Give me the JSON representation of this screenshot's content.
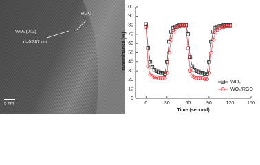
{
  "image": {
    "labels": {
      "region": "RGO",
      "plane": "WO₃ (002)",
      "spacing": "d=0.387 nm",
      "scale": "5 nm"
    }
  },
  "chart_data": {
    "type": "line",
    "x_label": "Time (second)",
    "y_label": "Transmittance (%)",
    "x": [
      0,
      3,
      6,
      9,
      12,
      15,
      18,
      21,
      24,
      27,
      30,
      33,
      36,
      39,
      42,
      45,
      48,
      51,
      54,
      57,
      60,
      63,
      66,
      69,
      72,
      75,
      78,
      81,
      84,
      87,
      90,
      93,
      96,
      99,
      102,
      105,
      108,
      111,
      114,
      117,
      120
    ],
    "series": [
      {
        "name": "WO₃",
        "color": "#222222",
        "marker": "square",
        "values": [
          81,
          55,
          40,
          34,
          31,
          30,
          29,
          28,
          28,
          27,
          40,
          62,
          73,
          77,
          78,
          79,
          80,
          80,
          80,
          80,
          70,
          45,
          35,
          31,
          30,
          29,
          28,
          28,
          27,
          27,
          40,
          62,
          73,
          77,
          78,
          79,
          79,
          80,
          80,
          80,
          80
        ]
      },
      {
        "name": "WO₃/RGO",
        "color": "#e8262b",
        "marker": "circle",
        "values": [
          78,
          35,
          26,
          24,
          23,
          23,
          22,
          22,
          22,
          22,
          28,
          50,
          64,
          72,
          76,
          78,
          79,
          80,
          80,
          80,
          55,
          30,
          25,
          23,
          22,
          22,
          22,
          22,
          21,
          21,
          28,
          50,
          64,
          72,
          75,
          77,
          78,
          78,
          79,
          79,
          79
        ]
      }
    ],
    "xlim": [
      -15,
      150
    ],
    "xticks": [
      0,
      30,
      60,
      90,
      120,
      150
    ],
    "ylim": [
      0,
      100
    ],
    "yticks": [
      0,
      10,
      20,
      30,
      40,
      50,
      60,
      70,
      80,
      90,
      100
    ],
    "legend": "lower right"
  }
}
